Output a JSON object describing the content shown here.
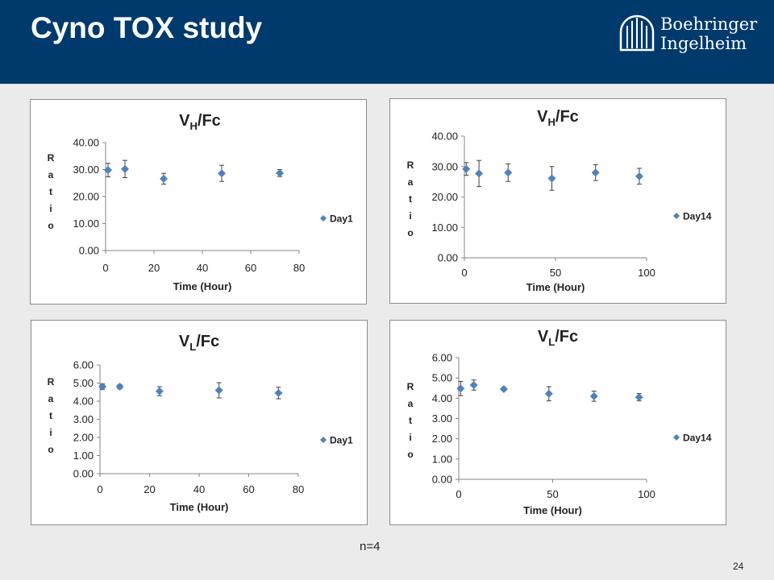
{
  "slide": {
    "title": "Cyno TOX study",
    "logo_line1": "Boehringer",
    "logo_line2": "Ingelheim",
    "footnote": "n=4",
    "page_number": "24",
    "colors": {
      "header": "#003a6c",
      "marker": "#4f81bd",
      "error_bar": "#404040",
      "axis": "#868686"
    }
  },
  "chart_data": [
    {
      "type": "scatter",
      "title_main": "V",
      "title_sub": "H",
      "title_rest": "/Fc",
      "xlabel": "Time (Hour)",
      "ylabel": "Ratio",
      "xlim": [
        0,
        80
      ],
      "xticks": [
        0,
        20,
        40,
        60,
        80
      ],
      "ylim": [
        0,
        40
      ],
      "yticks": [
        "0.00",
        "10.00",
        "20.00",
        "30.00",
        "40.00"
      ],
      "legend_position": "right",
      "series": [
        {
          "name": "Day1",
          "x": [
            1,
            8,
            24,
            48,
            72
          ],
          "y": [
            29.8,
            30.2,
            26.6,
            28.6,
            28.7
          ],
          "err": [
            2.5,
            3.2,
            2.0,
            3.0,
            1.3
          ]
        }
      ]
    },
    {
      "type": "scatter",
      "title_main": "V",
      "title_sub": "H",
      "title_rest": "/Fc",
      "xlabel": "Time (Hour)",
      "ylabel": "Ratio",
      "xlim": [
        0,
        100
      ],
      "xticks": [
        0,
        50,
        100
      ],
      "ylim": [
        0,
        40
      ],
      "yticks": [
        "0.00",
        "10.00",
        "20.00",
        "30.00",
        "40.00"
      ],
      "legend_position": "right",
      "series": [
        {
          "name": "Day14",
          "x": [
            1,
            8,
            24,
            48,
            72,
            96
          ],
          "y": [
            29.2,
            27.7,
            28.0,
            26.1,
            28.0,
            26.8
          ],
          "err": [
            2.1,
            4.3,
            2.9,
            3.9,
            2.6,
            2.6
          ]
        }
      ]
    },
    {
      "type": "scatter",
      "title_main": "V",
      "title_sub": "L",
      "title_rest": "/Fc",
      "xlabel": "Time (Hour)",
      "ylabel": "Ratio",
      "xlim": [
        0,
        80
      ],
      "xticks": [
        0,
        20,
        40,
        60,
        80
      ],
      "ylim": [
        0,
        6
      ],
      "yticks": [
        "0.00",
        "1.00",
        "2.00",
        "3.00",
        "4.00",
        "5.00",
        "6.00"
      ],
      "legend_position": "right",
      "series": [
        {
          "name": "Day1",
          "x": [
            1,
            8,
            24,
            48,
            72
          ],
          "y": [
            4.8,
            4.8,
            4.55,
            4.6,
            4.45
          ],
          "err": [
            0.15,
            0.12,
            0.25,
            0.42,
            0.32
          ]
        }
      ]
    },
    {
      "type": "scatter",
      "title_main": "V",
      "title_sub": "L",
      "title_rest": "/Fc",
      "xlabel": "Time (Hour)",
      "ylabel": "Ratio",
      "xlim": [
        0,
        100
      ],
      "xticks": [
        0,
        50,
        100
      ],
      "ylim": [
        0,
        6
      ],
      "yticks": [
        "0.00",
        "1.00",
        "2.00",
        "3.00",
        "4.00",
        "5.00",
        "6.00"
      ],
      "legend_position": "right",
      "series": [
        {
          "name": "Day14",
          "x": [
            1,
            8,
            24,
            48,
            72,
            96
          ],
          "y": [
            4.48,
            4.65,
            4.45,
            4.22,
            4.1,
            4.05
          ],
          "err": [
            0.35,
            0.25,
            0.08,
            0.35,
            0.25,
            0.18
          ]
        }
      ]
    }
  ]
}
